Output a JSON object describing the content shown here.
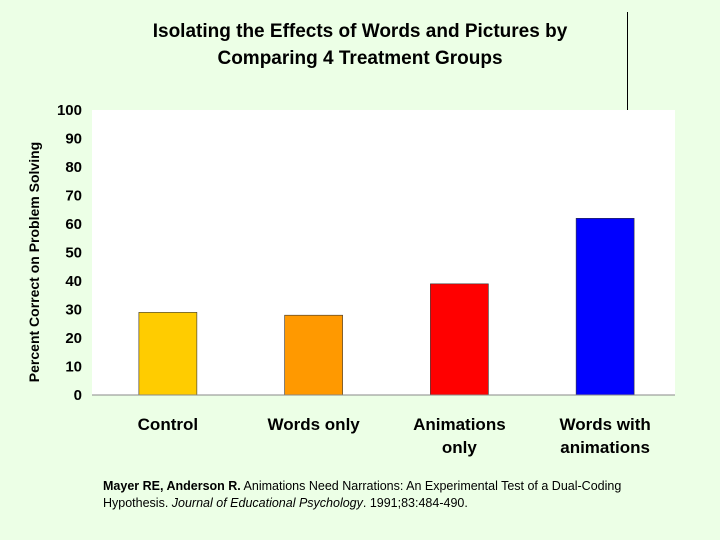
{
  "chart_data": {
    "type": "bar",
    "title_line1": "Isolating the Effects of Words and Pictures by",
    "title_line2": "Comparing 4 Treatment Groups",
    "ylabel": "Percent Correct on Problem Solving",
    "xlabel": "",
    "ylim": [
      0,
      100
    ],
    "yticks": [
      "0",
      "10",
      "20",
      "30",
      "40",
      "50",
      "60",
      "70",
      "80",
      "90",
      "100"
    ],
    "categories": [
      [
        "Control"
      ],
      [
        "Words only"
      ],
      [
        "Animations",
        "only"
      ],
      [
        "Words with",
        "animations"
      ]
    ],
    "values": [
      29,
      28,
      39,
      62
    ],
    "bar_colors": [
      "#ffcc00",
      "#ff9900",
      "#ff0000",
      "#0000ff"
    ],
    "grid": false,
    "legend": "none"
  },
  "citation": {
    "authors": "Mayer RE, Anderson R.",
    "title": " Animations Need Narrations: An Experimental Test of a Dual-Coding Hypothesis. ",
    "journal": "Journal of Educational Psychology",
    "details": ". 1991;83:484-490."
  },
  "colors": {
    "background": "#ecffe6",
    "plot_area": "#ffffff"
  }
}
